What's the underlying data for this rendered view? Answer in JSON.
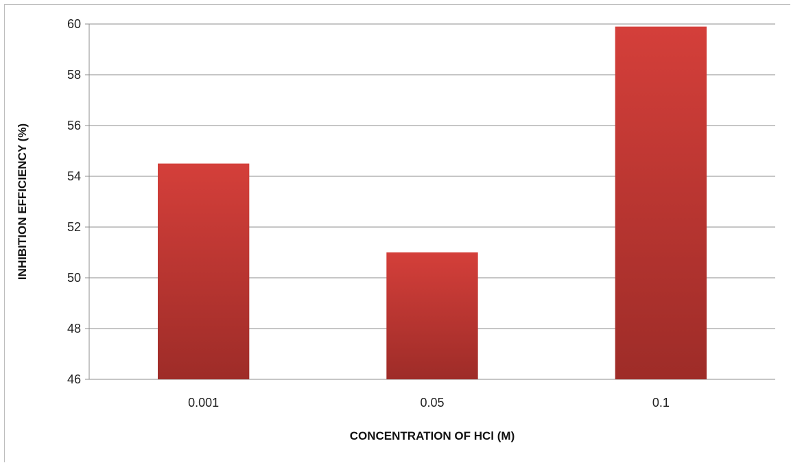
{
  "chart_data": {
    "type": "bar",
    "categories": [
      "0.001",
      "0.05",
      "0.1"
    ],
    "values": [
      54.5,
      51.0,
      59.9
    ],
    "xlabel": "CONCENTRATION OF HCl (M)",
    "ylabel": "INHIBITION EFFICIENCY (%)",
    "ylim": [
      46,
      60
    ],
    "yticks": [
      "46",
      "48",
      "50",
      "52",
      "54",
      "56",
      "58",
      "60"
    ],
    "grid": true,
    "legend": "none",
    "colors": {
      "bar_top": "#d43f3a",
      "bar_bottom": "#9e2c28",
      "grid": "#8c8c8c"
    }
  }
}
